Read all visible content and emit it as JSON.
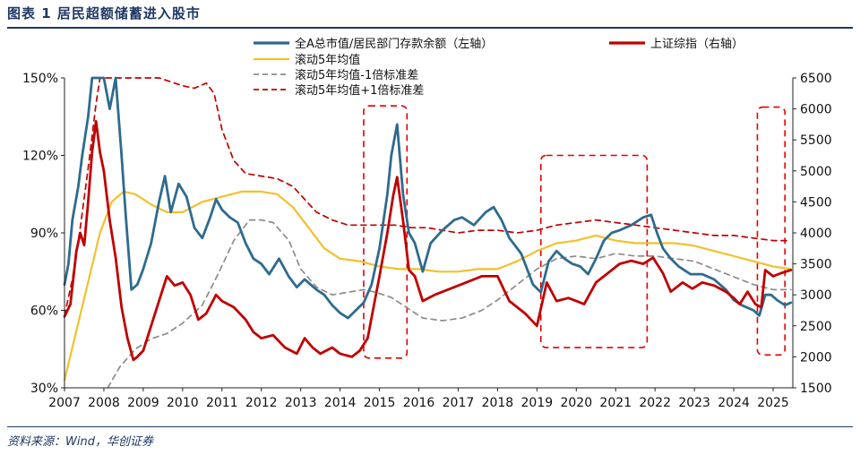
{
  "figure": {
    "title": "图表 1    居民超额储蓄进入股市",
    "source": "资料来源：Wind，华创证券"
  },
  "chart_data": {
    "type": "line",
    "left_axis": {
      "min": 0.3,
      "max": 1.5,
      "ticks": [
        "30%",
        "60%",
        "90%",
        "120%",
        "150%"
      ],
      "tick_values": [
        0.3,
        0.6,
        0.9,
        1.2,
        1.5
      ]
    },
    "right_axis": {
      "min": 1500,
      "max": 6500,
      "ticks": [
        "1500",
        "2000",
        "2500",
        "3000",
        "3500",
        "4000",
        "4500",
        "5000",
        "5500",
        "6000",
        "6500"
      ],
      "tick_values": [
        1500,
        2000,
        2500,
        3000,
        3500,
        4000,
        4500,
        5000,
        5500,
        6000,
        6500
      ]
    },
    "x_range": [
      2007.0,
      2025.5
    ],
    "x_ticks": [
      "2007",
      "2008",
      "2009",
      "2010",
      "2011",
      "2012",
      "2013",
      "2014",
      "2015",
      "2016",
      "2017",
      "2018",
      "2019",
      "2020",
      "2021",
      "2022",
      "2023",
      "2024",
      "2025"
    ],
    "legend": [
      {
        "label": "全A总市值/居民部门存款余额（左轴）",
        "color": "#2e6b8f",
        "style": "solid"
      },
      {
        "label": "上证综指（右轴）",
        "color": "#c00000",
        "style": "solid"
      },
      {
        "label": "滚动5年均值",
        "color": "#f2c12e",
        "style": "solid"
      },
      {
        "label": "滚动5年均值-1倍标准差",
        "color": "#8c8c8c",
        "style": "dashed"
      },
      {
        "label": "滚动5年均值+1倍标准差",
        "color": "#c00000",
        "style": "dashed"
      }
    ],
    "series": [
      {
        "name": "全A总市值/居民部门存款余额（左轴）",
        "axis": "left",
        "color": "#2e6b8f",
        "style": "solid",
        "x": [
          2007.0,
          2007.1,
          2007.2,
          2007.35,
          2007.45,
          2007.6,
          2007.7,
          2007.78,
          2007.85,
          2008.0,
          2008.15,
          2008.3,
          2008.45,
          2008.55,
          2008.7,
          2008.85,
          2009.0,
          2009.2,
          2009.4,
          2009.55,
          2009.7,
          2009.9,
          2010.1,
          2010.3,
          2010.5,
          2010.7,
          2010.85,
          2011.0,
          2011.2,
          2011.4,
          2011.6,
          2011.8,
          2012.0,
          2012.2,
          2012.45,
          2012.7,
          2012.9,
          2013.1,
          2013.4,
          2013.6,
          2013.8,
          2014.0,
          2014.2,
          2014.4,
          2014.6,
          2014.8,
          2015.0,
          2015.2,
          2015.3,
          2015.45,
          2015.6,
          2015.75,
          2015.9,
          2016.1,
          2016.3,
          2016.6,
          2016.9,
          2017.1,
          2017.4,
          2017.7,
          2017.9,
          2018.1,
          2018.3,
          2018.6,
          2018.9,
          2019.1,
          2019.3,
          2019.5,
          2019.7,
          2019.9,
          2020.1,
          2020.3,
          2020.5,
          2020.7,
          2020.9,
          2021.1,
          2021.4,
          2021.7,
          2021.9,
          2022.05,
          2022.2,
          2022.4,
          2022.6,
          2022.9,
          2023.2,
          2023.5,
          2023.8,
          2024.0,
          2024.2,
          2024.5,
          2024.65,
          2024.8,
          2024.95,
          2025.1,
          2025.3,
          2025.45
        ],
        "y": [
          0.7,
          0.78,
          0.95,
          1.08,
          1.2,
          1.35,
          1.52,
          1.62,
          1.58,
          1.55,
          1.38,
          1.5,
          1.2,
          0.98,
          0.68,
          0.7,
          0.76,
          0.86,
          1.02,
          1.12,
          0.98,
          1.09,
          1.04,
          0.92,
          0.88,
          0.96,
          1.03,
          0.99,
          0.96,
          0.94,
          0.86,
          0.8,
          0.78,
          0.74,
          0.8,
          0.73,
          0.69,
          0.72,
          0.68,
          0.66,
          0.62,
          0.59,
          0.57,
          0.6,
          0.63,
          0.7,
          0.84,
          1.05,
          1.2,
          1.32,
          1.05,
          0.9,
          0.86,
          0.75,
          0.86,
          0.91,
          0.95,
          0.96,
          0.93,
          0.98,
          1.0,
          0.95,
          0.88,
          0.82,
          0.7,
          0.67,
          0.79,
          0.83,
          0.8,
          0.78,
          0.77,
          0.74,
          0.8,
          0.87,
          0.9,
          0.91,
          0.93,
          0.96,
          0.97,
          0.9,
          0.84,
          0.8,
          0.77,
          0.74,
          0.74,
          0.72,
          0.68,
          0.64,
          0.62,
          0.6,
          0.58,
          0.66,
          0.66,
          0.64,
          0.62,
          0.63
        ]
      },
      {
        "name": "滚动5年均值",
        "axis": "left",
        "color": "#f2c12e",
        "style": "solid",
        "x": [
          2007.0,
          2007.3,
          2007.6,
          2007.9,
          2008.2,
          2008.5,
          2008.8,
          2009.2,
          2009.6,
          2010.0,
          2010.5,
          2011.0,
          2011.5,
          2012.0,
          2012.4,
          2012.8,
          2013.2,
          2013.6,
          2014.0,
          2014.5,
          2015.0,
          2015.5,
          2016.0,
          2016.5,
          2017.0,
          2017.5,
          2018.0,
          2018.5,
          2019.0,
          2019.5,
          2020.0,
          2020.5,
          2021.0,
          2021.5,
          2022.0,
          2022.5,
          2023.0,
          2023.5,
          2024.0,
          2024.5,
          2025.0,
          2025.45
        ],
        "y": [
          0.33,
          0.52,
          0.71,
          0.9,
          1.02,
          1.06,
          1.05,
          1.01,
          0.98,
          0.98,
          1.02,
          1.04,
          1.06,
          1.06,
          1.05,
          1.0,
          0.92,
          0.84,
          0.8,
          0.79,
          0.77,
          0.76,
          0.76,
          0.75,
          0.75,
          0.76,
          0.76,
          0.79,
          0.83,
          0.86,
          0.87,
          0.89,
          0.87,
          0.86,
          0.86,
          0.86,
          0.85,
          0.83,
          0.81,
          0.79,
          0.77,
          0.76
        ]
      },
      {
        "name": "滚动5年均值-1倍标准差",
        "axis": "left",
        "color": "#8c8c8c",
        "style": "dashed",
        "x": [
          2008.1,
          2008.4,
          2008.8,
          2009.2,
          2009.6,
          2010.0,
          2010.5,
          2010.9,
          2011.3,
          2011.7,
          2012.0,
          2012.3,
          2012.7,
          2013.0,
          2013.4,
          2013.8,
          2014.2,
          2014.6,
          2014.9,
          2015.3,
          2015.7,
          2016.1,
          2016.6,
          2017.1,
          2017.6,
          2018.0,
          2018.5,
          2019.0,
          2019.5,
          2020.0,
          2020.5,
          2021.0,
          2021.5,
          2022.0,
          2022.5,
          2023.0,
          2023.5,
          2024.0,
          2024.5,
          2025.0,
          2025.45
        ],
        "y": [
          0.3,
          0.38,
          0.45,
          0.49,
          0.51,
          0.55,
          0.62,
          0.74,
          0.87,
          0.95,
          0.95,
          0.94,
          0.87,
          0.76,
          0.69,
          0.66,
          0.67,
          0.68,
          0.67,
          0.65,
          0.61,
          0.57,
          0.56,
          0.57,
          0.6,
          0.64,
          0.7,
          0.76,
          0.8,
          0.81,
          0.8,
          0.82,
          0.81,
          0.81,
          0.8,
          0.79,
          0.76,
          0.73,
          0.7,
          0.68,
          0.68
        ]
      },
      {
        "name": "滚动5年均值+1倍标准差",
        "axis": "left",
        "color": "#c00000",
        "style": "dashed",
        "x": [
          2007.0,
          2007.2,
          2007.4,
          2007.6,
          2007.8,
          2007.9,
          2009.4,
          2009.6,
          2010.0,
          2010.3,
          2010.6,
          2010.8,
          2011.0,
          2011.3,
          2011.6,
          2012.0,
          2012.4,
          2012.8,
          2013.1,
          2013.4,
          2013.8,
          2014.2,
          2014.6,
          2015.0,
          2015.4,
          2015.8,
          2016.2,
          2016.6,
          2017.0,
          2017.5,
          2018.0,
          2018.5,
          2019.0,
          2019.5,
          2020.0,
          2020.5,
          2021.0,
          2021.5,
          2022.0,
          2022.5,
          2023.0,
          2023.5,
          2024.0,
          2024.5,
          2025.0,
          2025.45
        ],
        "y": [
          0.58,
          0.72,
          0.92,
          1.15,
          1.4,
          1.55,
          1.5,
          1.49,
          1.47,
          1.46,
          1.48,
          1.44,
          1.3,
          1.18,
          1.13,
          1.12,
          1.11,
          1.08,
          1.03,
          0.98,
          0.95,
          0.93,
          0.93,
          0.93,
          0.93,
          0.92,
          0.92,
          0.91,
          0.9,
          0.91,
          0.91,
          0.9,
          0.91,
          0.93,
          0.94,
          0.95,
          0.94,
          0.93,
          0.92,
          0.91,
          0.9,
          0.89,
          0.89,
          0.88,
          0.87,
          0.87
        ]
      },
      {
        "name": "上证综指（右轴）",
        "axis": "right",
        "color": "#c00000",
        "style": "solid",
        "x": [
          2007.0,
          2007.15,
          2007.3,
          2007.4,
          2007.5,
          2007.6,
          2007.7,
          2007.8,
          2007.9,
          2008.0,
          2008.15,
          2008.3,
          2008.45,
          2008.6,
          2008.75,
          2008.85,
          2009.0,
          2009.2,
          2009.4,
          2009.6,
          2009.8,
          2010.0,
          2010.2,
          2010.4,
          2010.6,
          2010.85,
          2011.0,
          2011.3,
          2011.6,
          2011.8,
          2012.0,
          2012.3,
          2012.6,
          2012.9,
          2013.1,
          2013.3,
          2013.5,
          2013.8,
          2014.0,
          2014.3,
          2014.5,
          2014.7,
          2014.85,
          2015.0,
          2015.2,
          2015.35,
          2015.45,
          2015.6,
          2015.75,
          2015.9,
          2016.1,
          2016.4,
          2016.8,
          2017.2,
          2017.6,
          2018.0,
          2018.3,
          2018.7,
          2019.0,
          2019.25,
          2019.5,
          2019.8,
          2020.0,
          2020.2,
          2020.5,
          2020.8,
          2021.1,
          2021.4,
          2021.7,
          2021.95,
          2022.2,
          2022.4,
          2022.7,
          2022.95,
          2023.2,
          2023.5,
          2023.8,
          2024.0,
          2024.15,
          2024.35,
          2024.55,
          2024.7,
          2024.8,
          2025.0,
          2025.2,
          2025.45
        ],
        "y": [
          2650,
          2850,
          3700,
          4000,
          3800,
          4500,
          5300,
          5800,
          5300,
          5000,
          4200,
          3600,
          2800,
          2300,
          1950,
          2000,
          2100,
          2500,
          2900,
          3300,
          3150,
          3200,
          3000,
          2600,
          2700,
          3000,
          2900,
          2800,
          2600,
          2400,
          2300,
          2350,
          2150,
          2050,
          2300,
          2150,
          2050,
          2150,
          2050,
          2000,
          2100,
          2300,
          2800,
          3300,
          4000,
          4600,
          4900,
          4200,
          3400,
          3300,
          2900,
          3000,
          3100,
          3200,
          3300,
          3300,
          2900,
          2700,
          2500,
          3200,
          2900,
          2950,
          2900,
          2850,
          3200,
          3350,
          3500,
          3550,
          3500,
          3600,
          3350,
          3050,
          3200,
          3100,
          3200,
          3150,
          3050,
          2950,
          2850,
          3050,
          2850,
          2800,
          3400,
          3300,
          3350,
          3400
        ]
      }
    ],
    "highlight_boxes": [
      {
        "x_from": 2014.6,
        "x_to": 2015.7,
        "y_from": 1980,
        "y_to": 6050
      },
      {
        "x_from": 2019.1,
        "x_to": 2021.8,
        "y_from": 2150,
        "y_to": 5250
      },
      {
        "x_from": 2024.6,
        "x_to": 2025.3,
        "y_from": 2030,
        "y_to": 6030
      }
    ]
  }
}
